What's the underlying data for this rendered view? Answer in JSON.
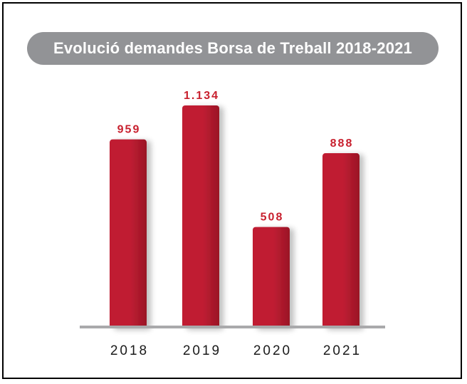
{
  "chart_data": {
    "type": "bar",
    "title": "Evolució demandes Borsa de Treball 2018-2021",
    "categories": [
      "2018",
      "2019",
      "2020",
      "2021"
    ],
    "values": [
      959,
      1134,
      508,
      888
    ],
    "value_labels": [
      "959",
      "1.134",
      "508",
      "888"
    ],
    "xlabel": "",
    "ylabel": "",
    "ylim": [
      0,
      1200
    ],
    "grid": false,
    "legend": "none"
  },
  "colors": {
    "bar": "#c01f33",
    "bar_dark": "#9a1426",
    "value_label": "#c8202e",
    "baseline": "#a9a9ab",
    "title_pill": "#929396"
  }
}
